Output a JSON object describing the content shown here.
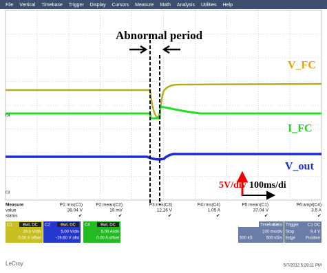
{
  "menu": [
    "File",
    "Vertical",
    "Timebase",
    "Trigger",
    "Display",
    "Cursors",
    "Measure",
    "Math",
    "Analysis",
    "Utilities",
    "Help"
  ],
  "annotations": {
    "title": "Abnormal period",
    "v_fc": "V_FC",
    "i_fc": "I_FC",
    "v_out": "V_out",
    "vdiv": "5V/div",
    "tdiv": "100ms/di"
  },
  "trace_labels": {
    "c4": "C4",
    "c3": "C3"
  },
  "measure": {
    "header": [
      "Measure",
      "P1:rms(C1)",
      "P2:mean(C2)",
      "P3:rms(C3)",
      "P4:rms(C4)",
      "P5:mean(C1)",
      "P6:ampl(C4)"
    ],
    "value": [
      "value",
      "38.04 V",
      "19 mV",
      "12.16 V",
      "1.05 A",
      "37.04 V",
      "3.5 A"
    ],
    "status": "status"
  },
  "channels": [
    {
      "name": "C1",
      "badge": "BwL DC",
      "scale": "20.0 V/div",
      "offset": "0.00 V offset"
    },
    {
      "name": "C2",
      "badge": "BwL DC",
      "scale": "5.00 V/div",
      "offset": "-19.60 V ofst"
    },
    {
      "name": "C4",
      "badge": "BwL DC",
      "scale": "5.00 A/div",
      "offset": "0.00 A offset"
    }
  ],
  "timebase": {
    "label": "Timebase",
    "delay": "0 ms",
    "scale": "100 ms/div",
    "samples": "500 kS",
    "rate": "500 kS/s"
  },
  "trigger": {
    "label": "Trigger",
    "source": "C1 DC",
    "mode": "Stop",
    "level": "9.4 V",
    "type": "Edge",
    "slope": "Positive"
  },
  "footer": {
    "brand": "LeCroy",
    "datetime": "5/7/2012 5:28:11 PM"
  }
}
